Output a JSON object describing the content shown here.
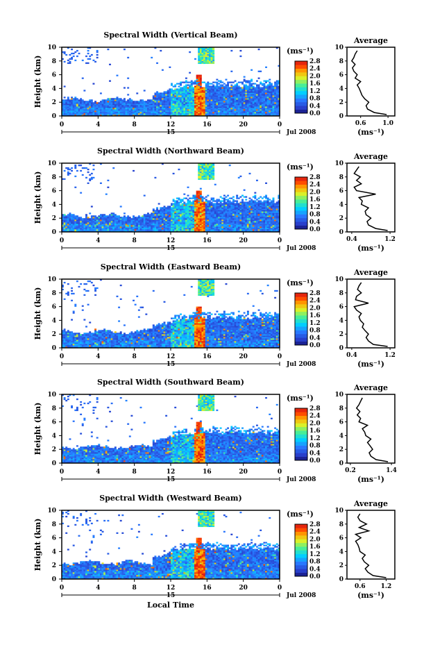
{
  "chart_data": [
    {
      "type": "heatmap",
      "title": "Spectral Width (Vertical Beam)",
      "ylabel": "Height (km)",
      "xticks": [
        "0",
        "4",
        "8",
        "12",
        "16",
        "20",
        "0"
      ],
      "yticks": [
        "0",
        "2",
        "4",
        "6",
        "8",
        "10"
      ],
      "xlim": [
        0,
        24
      ],
      "ylim": [
        0,
        10
      ],
      "date_marker": "15",
      "date_label": "Jul 2008",
      "colorbar": {
        "unit": "(ms⁻¹)",
        "ticks": [
          "2.8",
          "2.4",
          "2.0",
          "1.6",
          "1.2",
          "0.8",
          "0.4",
          "0.0"
        ],
        "range": [
          0,
          2.8
        ]
      },
      "profile": {
        "title": "Average",
        "xlabel": "(ms⁻¹)",
        "xticks": [
          "0.6",
          "1.0"
        ],
        "xlim": [
          0.4,
          1.1
        ],
        "heights": [
          0.2,
          0.5,
          1,
          1.5,
          2,
          2.5,
          3,
          3.5,
          4,
          4.5,
          5,
          5.5,
          6,
          6.5,
          7,
          7.5,
          8,
          8.5,
          9,
          9.5
        ],
        "values": [
          0.98,
          0.8,
          0.7,
          0.68,
          0.72,
          0.66,
          0.62,
          0.6,
          0.58,
          0.55,
          0.6,
          0.52,
          0.55,
          0.5,
          0.48,
          0.52,
          0.47,
          0.5,
          0.52,
          0.55
        ]
      }
    },
    {
      "type": "heatmap",
      "title": "Spectral Width (Northward Beam)",
      "ylabel": "Height (km)",
      "xticks": [
        "0",
        "4",
        "8",
        "12",
        "16",
        "20",
        "0"
      ],
      "yticks": [
        "0",
        "2",
        "4",
        "6",
        "8",
        "10"
      ],
      "xlim": [
        0,
        24
      ],
      "ylim": [
        0,
        10
      ],
      "date_marker": "15",
      "date_label": "Jul 2008",
      "colorbar": {
        "unit": "(ms⁻¹)",
        "ticks": [
          "2.8",
          "2.4",
          "2.0",
          "1.6",
          "1.2",
          "0.8",
          "0.4",
          "0.0"
        ],
        "range": [
          0,
          2.8
        ]
      },
      "profile": {
        "title": "Average",
        "xlabel": "(ms⁻¹)",
        "xticks": [
          "0.4",
          "1.2"
        ],
        "xlim": [
          0.3,
          1.3
        ],
        "heights": [
          0.2,
          0.5,
          1,
          1.5,
          2,
          2.5,
          3,
          3.5,
          4,
          4.5,
          5,
          5.5,
          6,
          6.5,
          7,
          7.5,
          8,
          8.5,
          9,
          9.5
        ],
        "values": [
          1.15,
          0.9,
          0.75,
          0.72,
          0.8,
          0.7,
          0.68,
          0.75,
          0.6,
          0.62,
          0.55,
          0.9,
          0.5,
          0.45,
          0.6,
          0.5,
          0.58,
          0.45,
          0.5,
          0.55
        ]
      }
    },
    {
      "type": "heatmap",
      "title": "Spectral Width (Eastward Beam)",
      "ylabel": "Height (km)",
      "xticks": [
        "0",
        "4",
        "8",
        "12",
        "16",
        "20",
        "0"
      ],
      "yticks": [
        "0",
        "2",
        "4",
        "6",
        "8",
        "10"
      ],
      "xlim": [
        0,
        24
      ],
      "ylim": [
        0,
        10
      ],
      "date_marker": "15",
      "date_label": "Jul 2008",
      "colorbar": {
        "unit": "(ms⁻¹)",
        "ticks": [
          "2.8",
          "2.4",
          "2.0",
          "1.6",
          "1.2",
          "0.8",
          "0.4",
          "0.0"
        ],
        "range": [
          0,
          2.8
        ]
      },
      "profile": {
        "title": "Average",
        "xlabel": "(ms⁻¹)",
        "xticks": [
          "0.4",
          "1.2"
        ],
        "xlim": [
          0.3,
          1.3
        ],
        "heights": [
          0.2,
          0.5,
          1,
          1.5,
          2,
          2.5,
          3,
          3.5,
          4,
          4.5,
          5,
          5.5,
          6,
          6.5,
          7,
          7.5,
          8,
          8.5,
          9,
          9.5
        ],
        "values": [
          1.15,
          0.85,
          0.75,
          0.7,
          0.75,
          0.68,
          0.62,
          0.65,
          0.58,
          0.55,
          0.6,
          0.5,
          0.45,
          0.75,
          0.48,
          0.5,
          0.6,
          0.52,
          0.55,
          0.6
        ]
      }
    },
    {
      "type": "heatmap",
      "title": "Spectral Width (Southward Beam)",
      "ylabel": "Height (km)",
      "xticks": [
        "0",
        "4",
        "8",
        "12",
        "16",
        "20",
        "0"
      ],
      "yticks": [
        "0",
        "2",
        "4",
        "6",
        "8",
        "10"
      ],
      "xlim": [
        0,
        24
      ],
      "ylim": [
        0,
        10
      ],
      "date_marker": "15",
      "date_label": "Jul 2008",
      "colorbar": {
        "unit": "(ms⁻¹)",
        "ticks": [
          "2.8",
          "2.4",
          "2.0",
          "1.6",
          "1.2",
          "0.8",
          "0.4",
          "0.0"
        ],
        "range": [
          0,
          2.8
        ]
      },
      "profile": {
        "title": "Average",
        "xlabel": "(ms⁻¹)",
        "xticks": [
          "0.2",
          "1.4"
        ],
        "xlim": [
          0.1,
          1.5
        ],
        "heights": [
          0.2,
          0.5,
          1,
          1.5,
          2,
          2.5,
          3,
          3.5,
          4,
          4.5,
          5,
          5.5,
          6,
          6.5,
          7,
          7.5,
          8,
          8.5,
          9,
          9.5
        ],
        "values": [
          1.3,
          0.95,
          0.8,
          0.75,
          0.85,
          0.78,
          0.7,
          0.8,
          0.65,
          0.62,
          0.55,
          0.7,
          0.45,
          0.5,
          0.4,
          0.48,
          0.38,
          0.45,
          0.5,
          0.55
        ]
      }
    },
    {
      "type": "heatmap",
      "title": "Spectral Width (Westward Beam)",
      "ylabel": "Height (km)",
      "xticks": [
        "0",
        "4",
        "8",
        "12",
        "16",
        "20",
        "0"
      ],
      "yticks": [
        "0",
        "2",
        "4",
        "6",
        "8",
        "10"
      ],
      "xlim": [
        0,
        24
      ],
      "ylim": [
        0,
        10
      ],
      "date_marker": "15",
      "date_label": "Jul 2008",
      "xlabel": "Local Time",
      "colorbar": {
        "unit": "(ms⁻¹)",
        "ticks": [
          "2.8",
          "2.4",
          "2.0",
          "1.6",
          "1.2",
          "0.8",
          "0.4",
          "0.0"
        ],
        "range": [
          0,
          2.8
        ]
      },
      "profile": {
        "title": "Average",
        "xlabel": "(ms⁻¹)",
        "xticks": [
          "0.6",
          "1.2"
        ],
        "xlim": [
          0.3,
          1.4
        ],
        "heights": [
          0.2,
          0.5,
          1,
          1.5,
          2,
          2.5,
          3,
          3.5,
          4,
          4.5,
          5,
          5.5,
          6,
          6.5,
          7,
          7.5,
          8,
          8.5,
          9,
          9.5
        ],
        "values": [
          1.2,
          0.9,
          0.78,
          0.72,
          0.8,
          0.7,
          0.65,
          0.72,
          0.6,
          0.58,
          0.55,
          0.5,
          0.62,
          0.5,
          0.8,
          0.58,
          0.75,
          0.6,
          0.55,
          0.6
        ]
      }
    }
  ]
}
